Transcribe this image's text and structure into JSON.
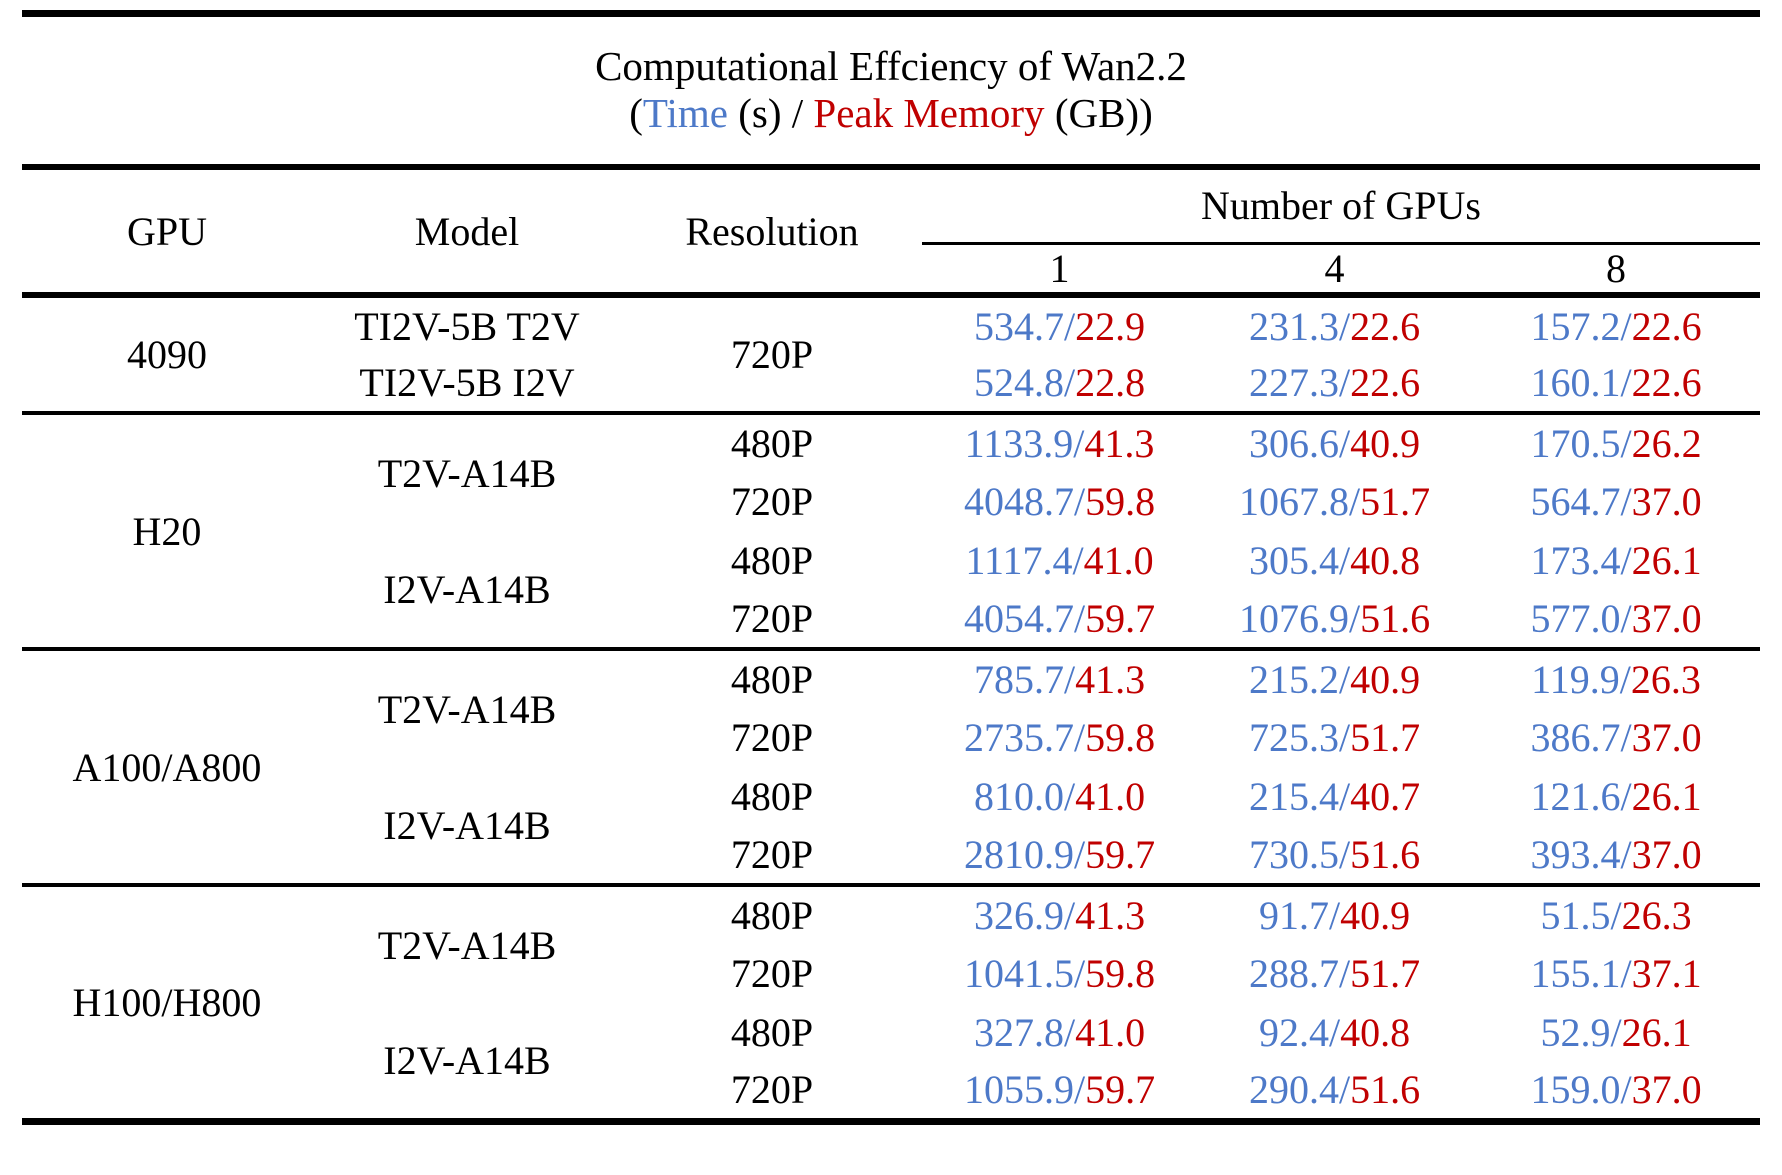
{
  "title": {
    "line1": "Computational Effciency of Wan2.2",
    "open": "(",
    "time_label": "Time",
    "mid": " (s) / ",
    "memory_label": "Peak Memory",
    "close": " (GB))"
  },
  "colors": {
    "time": "#4d79c8",
    "memory": "#c00000",
    "text": "#000000",
    "rule": "#000000",
    "background": "#ffffff"
  },
  "header": {
    "gpu": "GPU",
    "model": "Model",
    "resolution": "Resolution",
    "group": "Number of GPUs",
    "counts": [
      "1",
      "4",
      "8"
    ]
  },
  "value_separator": "/",
  "units": {
    "time": "s",
    "memory": "GB"
  },
  "sections": [
    {
      "gpu": "4090",
      "rows": [
        {
          "model": {
            "text": "TI2V-5B T2V",
            "rowspan": 1
          },
          "resolution": {
            "text": "720P",
            "rowspan": 2
          },
          "values": [
            {
              "time": "534.7",
              "mem": "22.9"
            },
            {
              "time": "231.3",
              "mem": "22.6"
            },
            {
              "time": "157.2",
              "mem": "22.6"
            }
          ]
        },
        {
          "model": {
            "text": "TI2V-5B I2V",
            "rowspan": 1
          },
          "resolution": null,
          "values": [
            {
              "time": "524.8",
              "mem": "22.8"
            },
            {
              "time": "227.3",
              "mem": "22.6"
            },
            {
              "time": "160.1",
              "mem": "22.6"
            }
          ]
        }
      ]
    },
    {
      "gpu": "H20",
      "rows": [
        {
          "model": {
            "text": "T2V-A14B",
            "rowspan": 2
          },
          "resolution": {
            "text": "480P",
            "rowspan": 1
          },
          "values": [
            {
              "time": "1133.9",
              "mem": "41.3"
            },
            {
              "time": "306.6",
              "mem": "40.9"
            },
            {
              "time": "170.5",
              "mem": "26.2"
            }
          ]
        },
        {
          "model": null,
          "resolution": {
            "text": "720P",
            "rowspan": 1
          },
          "values": [
            {
              "time": "4048.7",
              "mem": "59.8"
            },
            {
              "time": "1067.8",
              "mem": "51.7"
            },
            {
              "time": "564.7",
              "mem": "37.0"
            }
          ]
        },
        {
          "model": {
            "text": "I2V-A14B",
            "rowspan": 2
          },
          "resolution": {
            "text": "480P",
            "rowspan": 1
          },
          "values": [
            {
              "time": "1117.4",
              "mem": "41.0"
            },
            {
              "time": "305.4",
              "mem": "40.8"
            },
            {
              "time": "173.4",
              "mem": "26.1"
            }
          ]
        },
        {
          "model": null,
          "resolution": {
            "text": "720P",
            "rowspan": 1
          },
          "values": [
            {
              "time": "4054.7",
              "mem": "59.7"
            },
            {
              "time": "1076.9",
              "mem": "51.6"
            },
            {
              "time": "577.0",
              "mem": "37.0"
            }
          ]
        }
      ]
    },
    {
      "gpu": "A100/A800",
      "rows": [
        {
          "model": {
            "text": "T2V-A14B",
            "rowspan": 2
          },
          "resolution": {
            "text": "480P",
            "rowspan": 1
          },
          "values": [
            {
              "time": "785.7",
              "mem": "41.3"
            },
            {
              "time": "215.2",
              "mem": "40.9"
            },
            {
              "time": "119.9",
              "mem": "26.3"
            }
          ]
        },
        {
          "model": null,
          "resolution": {
            "text": "720P",
            "rowspan": 1
          },
          "values": [
            {
              "time": "2735.7",
              "mem": "59.8"
            },
            {
              "time": "725.3",
              "mem": "51.7"
            },
            {
              "time": "386.7",
              "mem": "37.0"
            }
          ]
        },
        {
          "model": {
            "text": "I2V-A14B",
            "rowspan": 2
          },
          "resolution": {
            "text": "480P",
            "rowspan": 1
          },
          "values": [
            {
              "time": "810.0",
              "mem": "41.0"
            },
            {
              "time": "215.4",
              "mem": "40.7"
            },
            {
              "time": "121.6",
              "mem": "26.1"
            }
          ]
        },
        {
          "model": null,
          "resolution": {
            "text": "720P",
            "rowspan": 1
          },
          "values": [
            {
              "time": "2810.9",
              "mem": "59.7"
            },
            {
              "time": "730.5",
              "mem": "51.6"
            },
            {
              "time": "393.4",
              "mem": "37.0"
            }
          ]
        }
      ]
    },
    {
      "gpu": "H100/H800",
      "rows": [
        {
          "model": {
            "text": "T2V-A14B",
            "rowspan": 2
          },
          "resolution": {
            "text": "480P",
            "rowspan": 1
          },
          "values": [
            {
              "time": "326.9",
              "mem": "41.3"
            },
            {
              "time": "91.7",
              "mem": "40.9"
            },
            {
              "time": "51.5",
              "mem": "26.3"
            }
          ]
        },
        {
          "model": null,
          "resolution": {
            "text": "720P",
            "rowspan": 1
          },
          "values": [
            {
              "time": "1041.5",
              "mem": "59.8"
            },
            {
              "time": "288.7",
              "mem": "51.7"
            },
            {
              "time": "155.1",
              "mem": "37.1"
            }
          ]
        },
        {
          "model": {
            "text": "I2V-A14B",
            "rowspan": 2
          },
          "resolution": {
            "text": "480P",
            "rowspan": 1
          },
          "values": [
            {
              "time": "327.8",
              "mem": "41.0"
            },
            {
              "time": "92.4",
              "mem": "40.8"
            },
            {
              "time": "52.9",
              "mem": "26.1"
            }
          ]
        },
        {
          "model": null,
          "resolution": {
            "text": "720P",
            "rowspan": 1
          },
          "values": [
            {
              "time": "1055.9",
              "mem": "59.7"
            },
            {
              "time": "290.4",
              "mem": "51.6"
            },
            {
              "time": "159.0",
              "mem": "37.0"
            }
          ]
        }
      ]
    }
  ]
}
